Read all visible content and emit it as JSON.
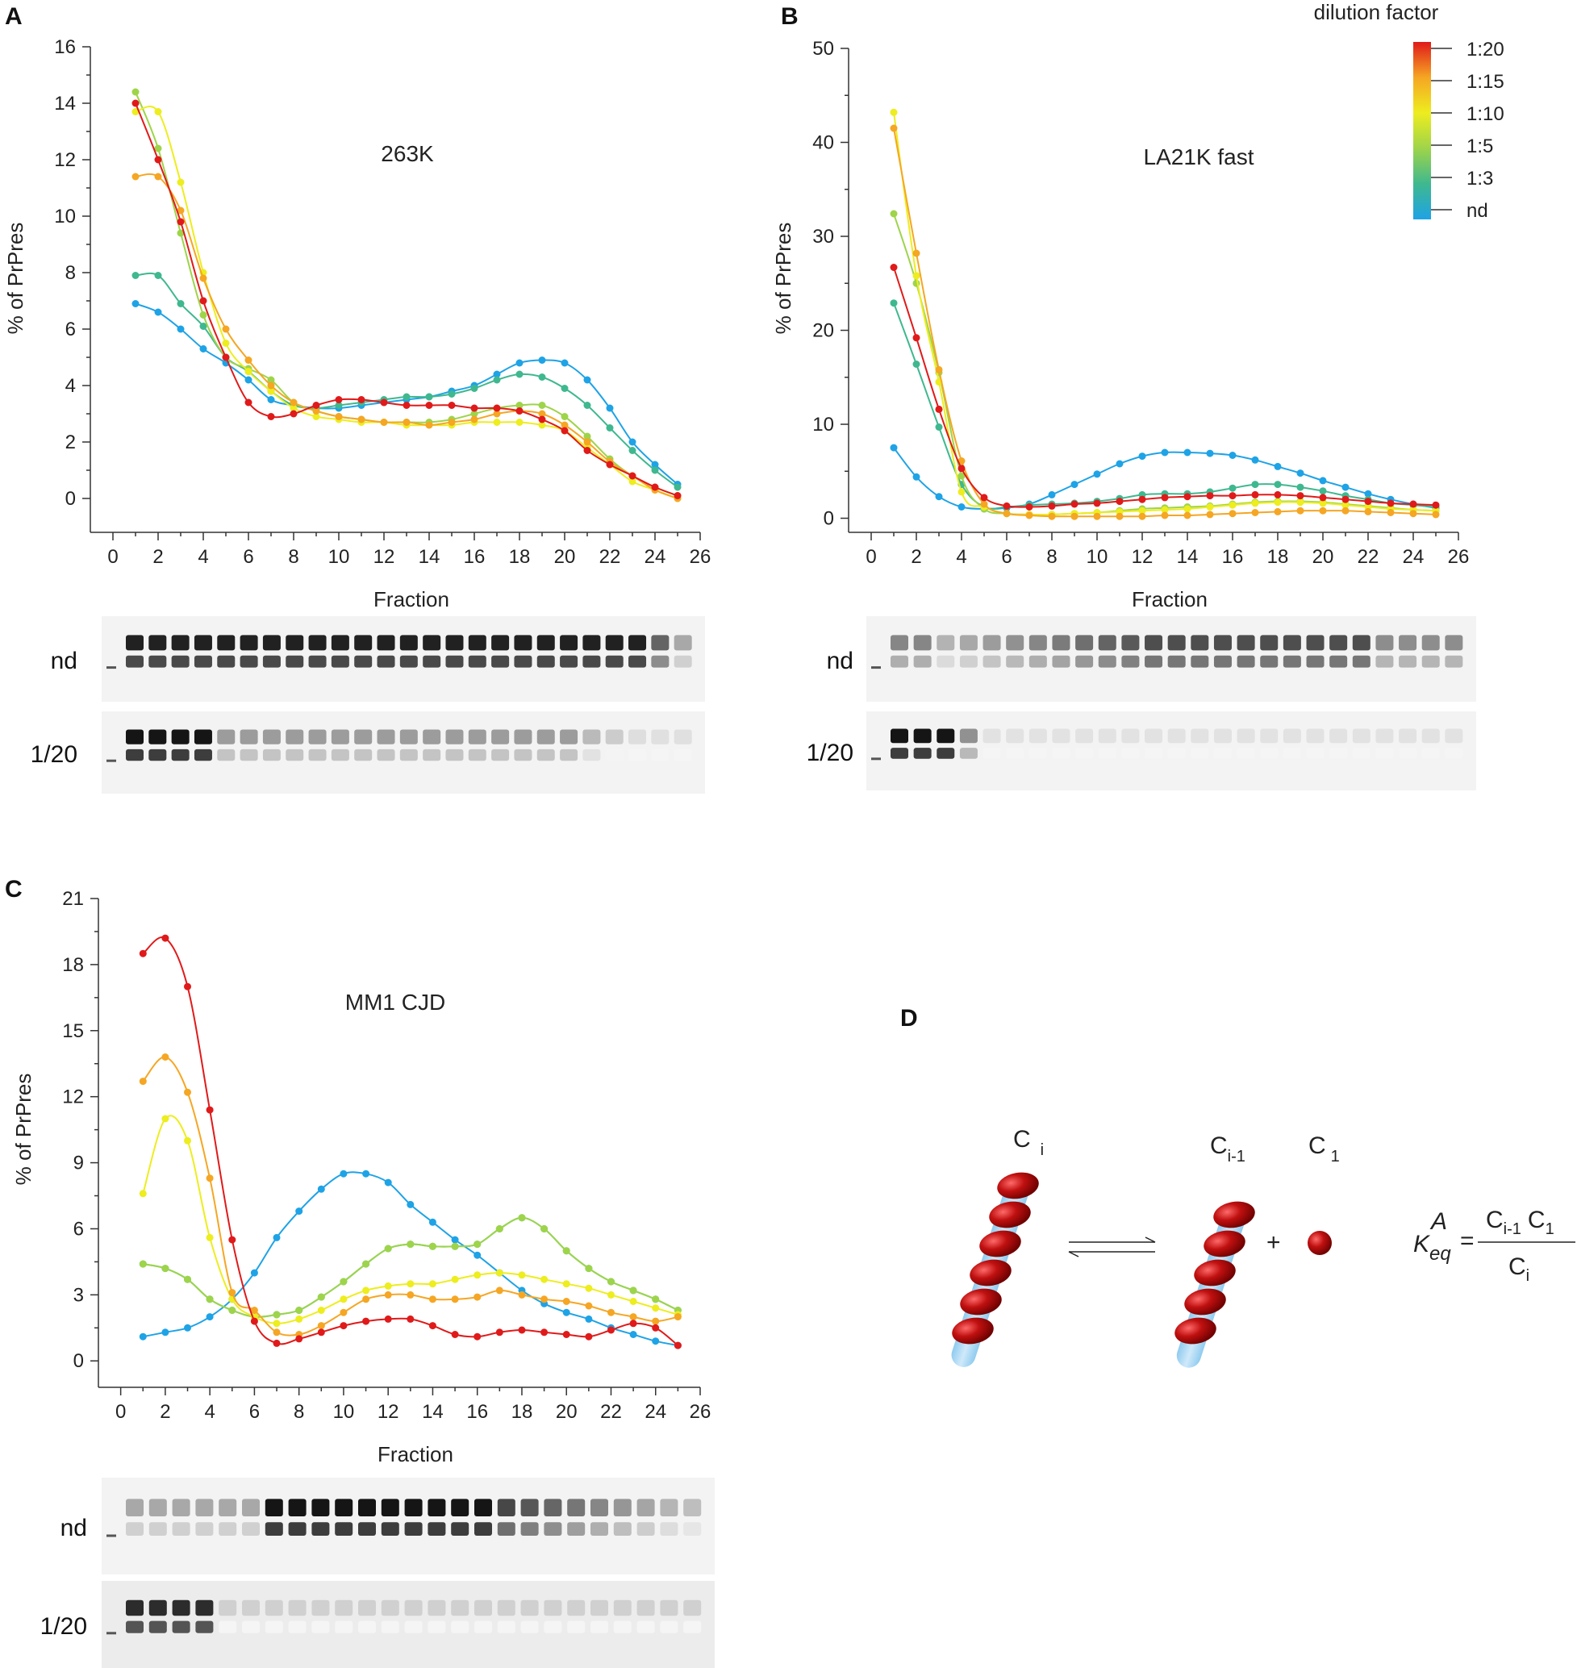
{
  "legend": {
    "title": "dilution factor",
    "entries": [
      "1:20",
      "1:15",
      "1:10",
      "1:5",
      "1:3",
      "nd"
    ]
  },
  "colors": {
    "1:20": "#e01a1a",
    "1:15": "#f5a623",
    "1:10": "#eded1f",
    "1:5": "#9ed44a",
    "1:3": "#3fb88f",
    "nd": "#1ea3e6"
  },
  "panels": {
    "A": {
      "letter": "A"
    },
    "B": {
      "letter": "B"
    },
    "C": {
      "letter": "C"
    },
    "D": {
      "letter": "D"
    }
  },
  "chart_data": [
    {
      "id": "A",
      "type": "line",
      "title": "263K",
      "xlabel": "Fraction",
      "ylabel": "% of PrPres",
      "xlim": [
        -1,
        26
      ],
      "ylim": [
        -1.2,
        16
      ],
      "xticks": [
        0,
        2,
        4,
        6,
        8,
        10,
        12,
        14,
        16,
        18,
        20,
        22,
        24,
        26
      ],
      "yticks": [
        0,
        2,
        4,
        6,
        8,
        10,
        12,
        14,
        16
      ],
      "x": [
        1,
        2,
        3,
        4,
        5,
        6,
        7,
        8,
        9,
        10,
        11,
        12,
        13,
        14,
        15,
        16,
        17,
        18,
        19,
        20,
        21,
        22,
        23,
        24,
        25
      ],
      "series": [
        {
          "name": "1:20",
          "values": [
            14.0,
            12.0,
            9.8,
            7.0,
            5.0,
            3.4,
            2.9,
            3.0,
            3.3,
            3.5,
            3.5,
            3.4,
            3.3,
            3.3,
            3.3,
            3.2,
            3.2,
            3.1,
            2.8,
            2.4,
            1.7,
            1.2,
            0.8,
            0.4,
            0.1
          ]
        },
        {
          "name": "1:15",
          "values": [
            11.4,
            11.4,
            10.2,
            7.8,
            6.0,
            4.9,
            4.0,
            3.4,
            3.1,
            2.9,
            2.8,
            2.7,
            2.7,
            2.6,
            2.7,
            2.8,
            3.0,
            3.1,
            3.0,
            2.6,
            2.0,
            1.3,
            0.8,
            0.3,
            0.0
          ]
        },
        {
          "name": "1:10",
          "values": [
            13.7,
            13.7,
            11.2,
            8.0,
            5.5,
            4.5,
            3.8,
            3.2,
            2.9,
            2.8,
            2.7,
            2.7,
            2.6,
            2.6,
            2.6,
            2.7,
            2.7,
            2.7,
            2.6,
            2.4,
            1.8,
            1.2,
            0.6,
            0.3,
            0.0
          ]
        },
        {
          "name": "1:5",
          "values": [
            14.4,
            12.4,
            9.4,
            6.5,
            5.0,
            4.6,
            4.2,
            3.4,
            3.1,
            2.9,
            2.8,
            2.7,
            2.7,
            2.7,
            2.8,
            3.0,
            3.2,
            3.3,
            3.3,
            2.9,
            2.2,
            1.4,
            0.8,
            0.4,
            0.1
          ]
        },
        {
          "name": "1:3",
          "values": [
            7.9,
            7.9,
            6.9,
            6.1,
            5.0,
            4.5,
            3.8,
            3.3,
            3.2,
            3.3,
            3.4,
            3.5,
            3.6,
            3.6,
            3.7,
            3.9,
            4.2,
            4.4,
            4.3,
            3.9,
            3.3,
            2.5,
            1.7,
            1.0,
            0.4
          ]
        },
        {
          "name": "nd",
          "values": [
            6.9,
            6.6,
            6.0,
            5.3,
            4.8,
            4.2,
            3.5,
            3.3,
            3.2,
            3.2,
            3.3,
            3.4,
            3.5,
            3.6,
            3.8,
            4.0,
            4.4,
            4.8,
            4.9,
            4.8,
            4.2,
            3.2,
            2.0,
            1.2,
            0.5
          ]
        }
      ]
    },
    {
      "id": "B",
      "type": "line",
      "title": "LA21K fast",
      "xlabel": "Fraction",
      "ylabel": "% of PrPres",
      "xlim": [
        -1,
        26
      ],
      "ylim": [
        -1.5,
        50
      ],
      "xticks": [
        0,
        2,
        4,
        6,
        8,
        10,
        12,
        14,
        16,
        18,
        20,
        22,
        24,
        26
      ],
      "yticks": [
        0,
        10,
        20,
        30,
        40,
        50
      ],
      "x": [
        1,
        2,
        3,
        4,
        5,
        6,
        7,
        8,
        9,
        10,
        11,
        12,
        13,
        14,
        15,
        16,
        17,
        18,
        19,
        20,
        21,
        22,
        23,
        24,
        25
      ],
      "series": [
        {
          "name": "1:20",
          "values": [
            26.7,
            19.2,
            11.6,
            5.3,
            2.2,
            1.3,
            1.2,
            1.3,
            1.5,
            1.6,
            1.8,
            2.0,
            2.2,
            2.3,
            2.4,
            2.4,
            2.5,
            2.5,
            2.4,
            2.2,
            2.0,
            1.8,
            1.6,
            1.5,
            1.4
          ]
        },
        {
          "name": "1:15",
          "values": [
            41.5,
            28.2,
            15.8,
            6.1,
            1.5,
            0.5,
            0.3,
            0.2,
            0.2,
            0.2,
            0.2,
            0.2,
            0.3,
            0.3,
            0.4,
            0.5,
            0.6,
            0.7,
            0.8,
            0.8,
            0.8,
            0.7,
            0.6,
            0.5,
            0.4
          ]
        },
        {
          "name": "1:10",
          "values": [
            43.2,
            25.8,
            14.5,
            2.8,
            1.2,
            0.5,
            0.4,
            0.4,
            0.5,
            0.6,
            0.7,
            0.8,
            0.9,
            1.0,
            1.2,
            1.4,
            1.6,
            1.7,
            1.7,
            1.6,
            1.4,
            1.2,
            1.0,
            0.9,
            0.8
          ]
        },
        {
          "name": "1:5",
          "values": [
            32.4,
            25.0,
            15.5,
            4.5,
            1.0,
            0.5,
            0.4,
            0.4,
            0.5,
            0.6,
            0.8,
            1.0,
            1.1,
            1.2,
            1.3,
            1.5,
            1.7,
            1.8,
            1.8,
            1.7,
            1.5,
            1.3,
            1.1,
            0.9,
            0.8
          ]
        },
        {
          "name": "1:3",
          "values": [
            22.9,
            16.4,
            9.7,
            3.6,
            1.2,
            1.2,
            1.4,
            1.5,
            1.6,
            1.8,
            2.1,
            2.5,
            2.6,
            2.6,
            2.8,
            3.2,
            3.6,
            3.6,
            3.3,
            2.9,
            2.4,
            2.0,
            1.6,
            1.4,
            1.2
          ]
        },
        {
          "name": "nd",
          "values": [
            7.5,
            4.4,
            2.3,
            1.2,
            1.0,
            1.1,
            1.5,
            2.5,
            3.6,
            4.7,
            5.8,
            6.6,
            7.0,
            7.0,
            6.9,
            6.7,
            6.2,
            5.5,
            4.8,
            4.0,
            3.3,
            2.6,
            2.0,
            1.5,
            1.1
          ]
        }
      ]
    },
    {
      "id": "C",
      "type": "line",
      "title": "MM1 CJD",
      "xlabel": "Fraction",
      "ylabel": "% of PrPres",
      "xlim": [
        -1,
        26
      ],
      "ylim": [
        -1.2,
        21
      ],
      "xticks": [
        0,
        2,
        4,
        6,
        8,
        10,
        12,
        14,
        16,
        18,
        20,
        22,
        24,
        26
      ],
      "yticks": [
        0,
        3,
        6,
        9,
        12,
        15,
        18,
        21
      ],
      "x": [
        1,
        2,
        3,
        4,
        5,
        6,
        7,
        8,
        9,
        10,
        11,
        12,
        13,
        14,
        15,
        16,
        17,
        18,
        19,
        20,
        21,
        22,
        23,
        24,
        25
      ],
      "series": [
        {
          "name": "1:20",
          "values": [
            18.5,
            19.2,
            17.0,
            11.4,
            5.5,
            1.8,
            0.8,
            1.0,
            1.3,
            1.6,
            1.8,
            1.9,
            1.9,
            1.6,
            1.2,
            1.1,
            1.3,
            1.4,
            1.3,
            1.2,
            1.1,
            1.4,
            1.7,
            1.5,
            0.7
          ]
        },
        {
          "name": "1:15",
          "values": [
            12.7,
            13.8,
            12.2,
            8.3,
            3.1,
            2.3,
            1.3,
            1.2,
            1.6,
            2.2,
            2.8,
            3.0,
            3.0,
            2.8,
            2.8,
            2.9,
            3.2,
            3.0,
            2.8,
            2.7,
            2.5,
            2.2,
            2.0,
            1.8,
            2.0
          ]
        },
        {
          "name": "1:10",
          "values": [
            7.6,
            11.0,
            10.0,
            5.6,
            2.8,
            2.0,
            1.7,
            1.9,
            2.3,
            2.8,
            3.2,
            3.4,
            3.5,
            3.5,
            3.7,
            3.9,
            4.0,
            3.9,
            3.7,
            3.5,
            3.3,
            3.0,
            2.7,
            2.4,
            2.1
          ]
        },
        {
          "name": "1:5",
          "values": [
            4.4,
            4.2,
            3.7,
            2.8,
            2.3,
            2.0,
            2.1,
            2.3,
            2.9,
            3.6,
            4.4,
            5.1,
            5.3,
            5.2,
            5.2,
            5.3,
            6.0,
            6.5,
            6.0,
            5.0,
            4.2,
            3.6,
            3.2,
            2.8,
            2.3
          ]
        },
        {
          "name": "1:3",
          "values": [
            4.4,
            4.2,
            3.7,
            2.8,
            2.3,
            2.0,
            2.1,
            2.3,
            2.9,
            3.6,
            4.4,
            5.1,
            5.3,
            5.2,
            5.2,
            5.3,
            6.0,
            6.5,
            6.0,
            5.0,
            4.2,
            3.6,
            3.2,
            2.8,
            2.3
          ]
        },
        {
          "name": "nd",
          "values": [
            1.1,
            1.3,
            1.5,
            2.0,
            2.8,
            4.0,
            5.6,
            6.8,
            7.8,
            8.5,
            8.5,
            8.1,
            7.1,
            6.3,
            5.5,
            4.8,
            4.0,
            3.2,
            2.6,
            2.2,
            1.9,
            1.5,
            1.2,
            0.9,
            0.7
          ]
        }
      ]
    }
  ],
  "blots": {
    "A": {
      "lanes": [
        "nd",
        "1/20"
      ]
    },
    "B": {
      "lanes": [
        "nd",
        "1/20"
      ]
    },
    "C": {
      "lanes": [
        "nd",
        "1/20"
      ]
    }
  },
  "diagram": {
    "label_ci": "C",
    "label_ci_sub": "i",
    "label_cim1": "C",
    "label_cim1_sub": "i-1",
    "label_c1": "C",
    "label_c1_sub": "1",
    "plus": "+",
    "keq": "K",
    "keq_sub": "eq",
    "keq_sup": "A",
    "equals": "=",
    "num_c": "C",
    "num_sub1": "i-1",
    "num_c2": "C",
    "num_sub2": "1",
    "den_c": "C",
    "den_sub": "i"
  }
}
